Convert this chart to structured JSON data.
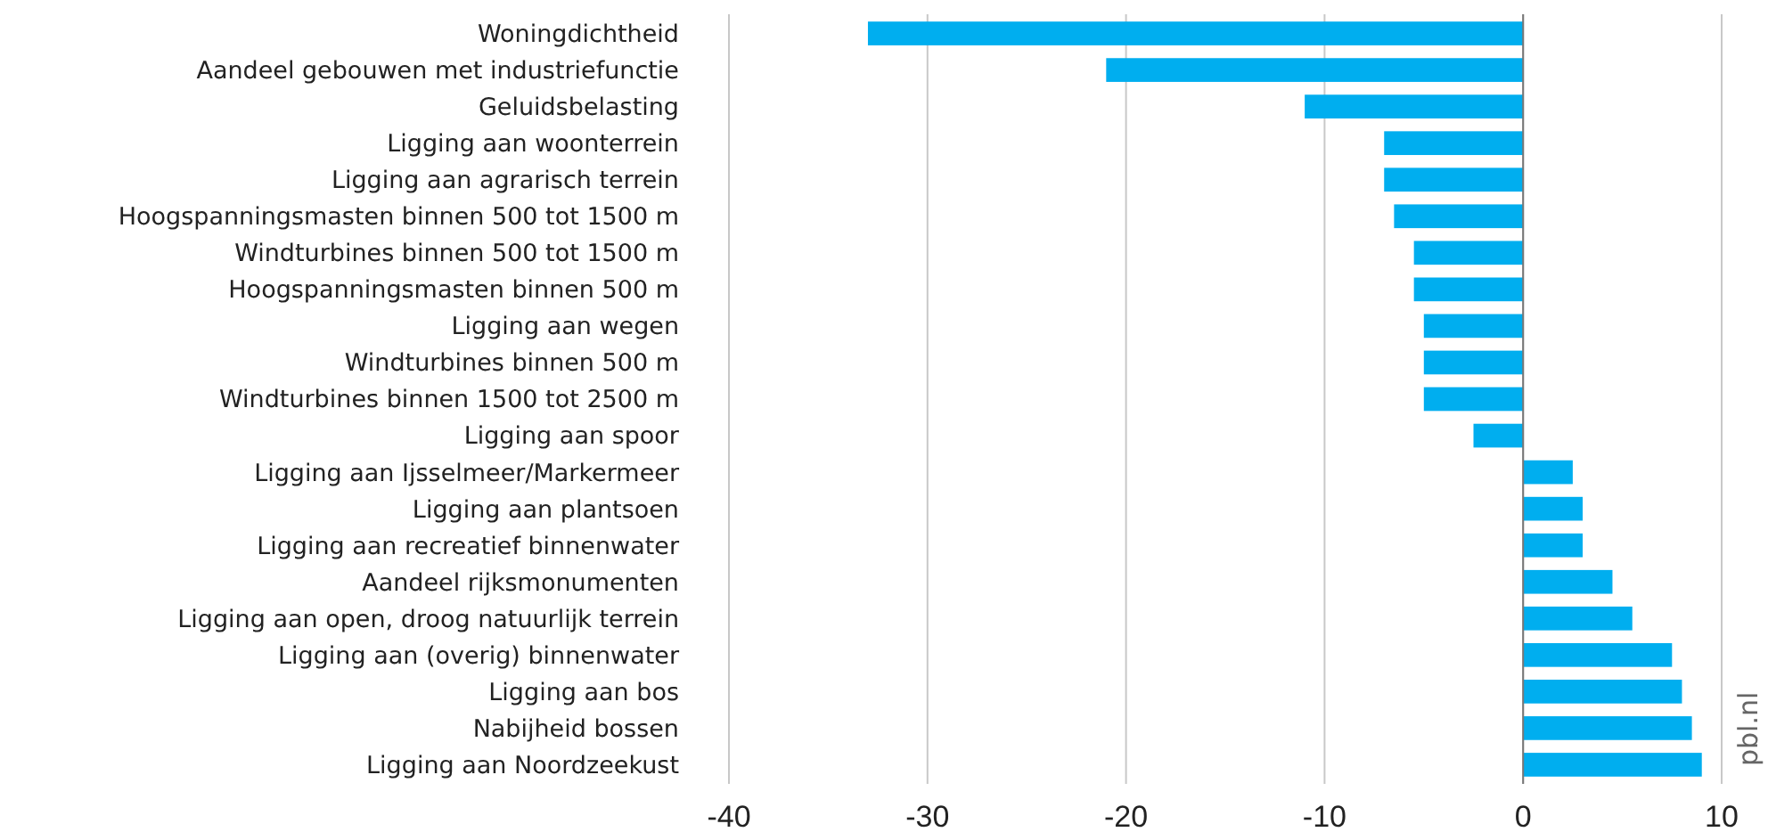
{
  "chart_data": {
    "type": "bar",
    "orientation": "horizontal",
    "categories": [
      "Woningdichtheid",
      "Aandeel gebouwen met industriefunctie",
      "Geluidsbelasting",
      "Ligging aan woonterrein",
      "Ligging aan agrarisch terrein",
      "Hoogspanningsmasten binnen 500 tot 1500 m",
      "Windturbines binnen 500 tot 1500 m",
      "Hoogspanningsmasten binnen 500 m",
      "Ligging aan wegen",
      "Windturbines binnen 500 m",
      "Windturbines binnen 1500 tot 2500 m",
      "Ligging aan spoor",
      "Ligging aan Ijsselmeer/Markermeer",
      "Ligging aan plantsoen",
      "Ligging aan recreatief binnenwater",
      "Aandeel rijksmonumenten",
      "Ligging aan open, droog natuurlijk terrein",
      "Ligging aan (overig) binnenwater",
      "Ligging aan bos",
      "Nabijheid bossen",
      "Ligging aan Noordzeekust"
    ],
    "values": [
      -33,
      -21,
      -11,
      -7,
      -7,
      -6.5,
      -5.5,
      -5.5,
      -5,
      -5,
      -5,
      -2.5,
      2.5,
      3,
      3,
      4.5,
      5.5,
      7.5,
      8,
      8.5,
      9
    ],
    "color": "#00aeef",
    "xlim": [
      -40,
      10
    ],
    "xticks": [
      -40,
      -30,
      -20,
      -10,
      0,
      10
    ],
    "grid": "x",
    "annotations": [
      "pbl.nl"
    ]
  }
}
